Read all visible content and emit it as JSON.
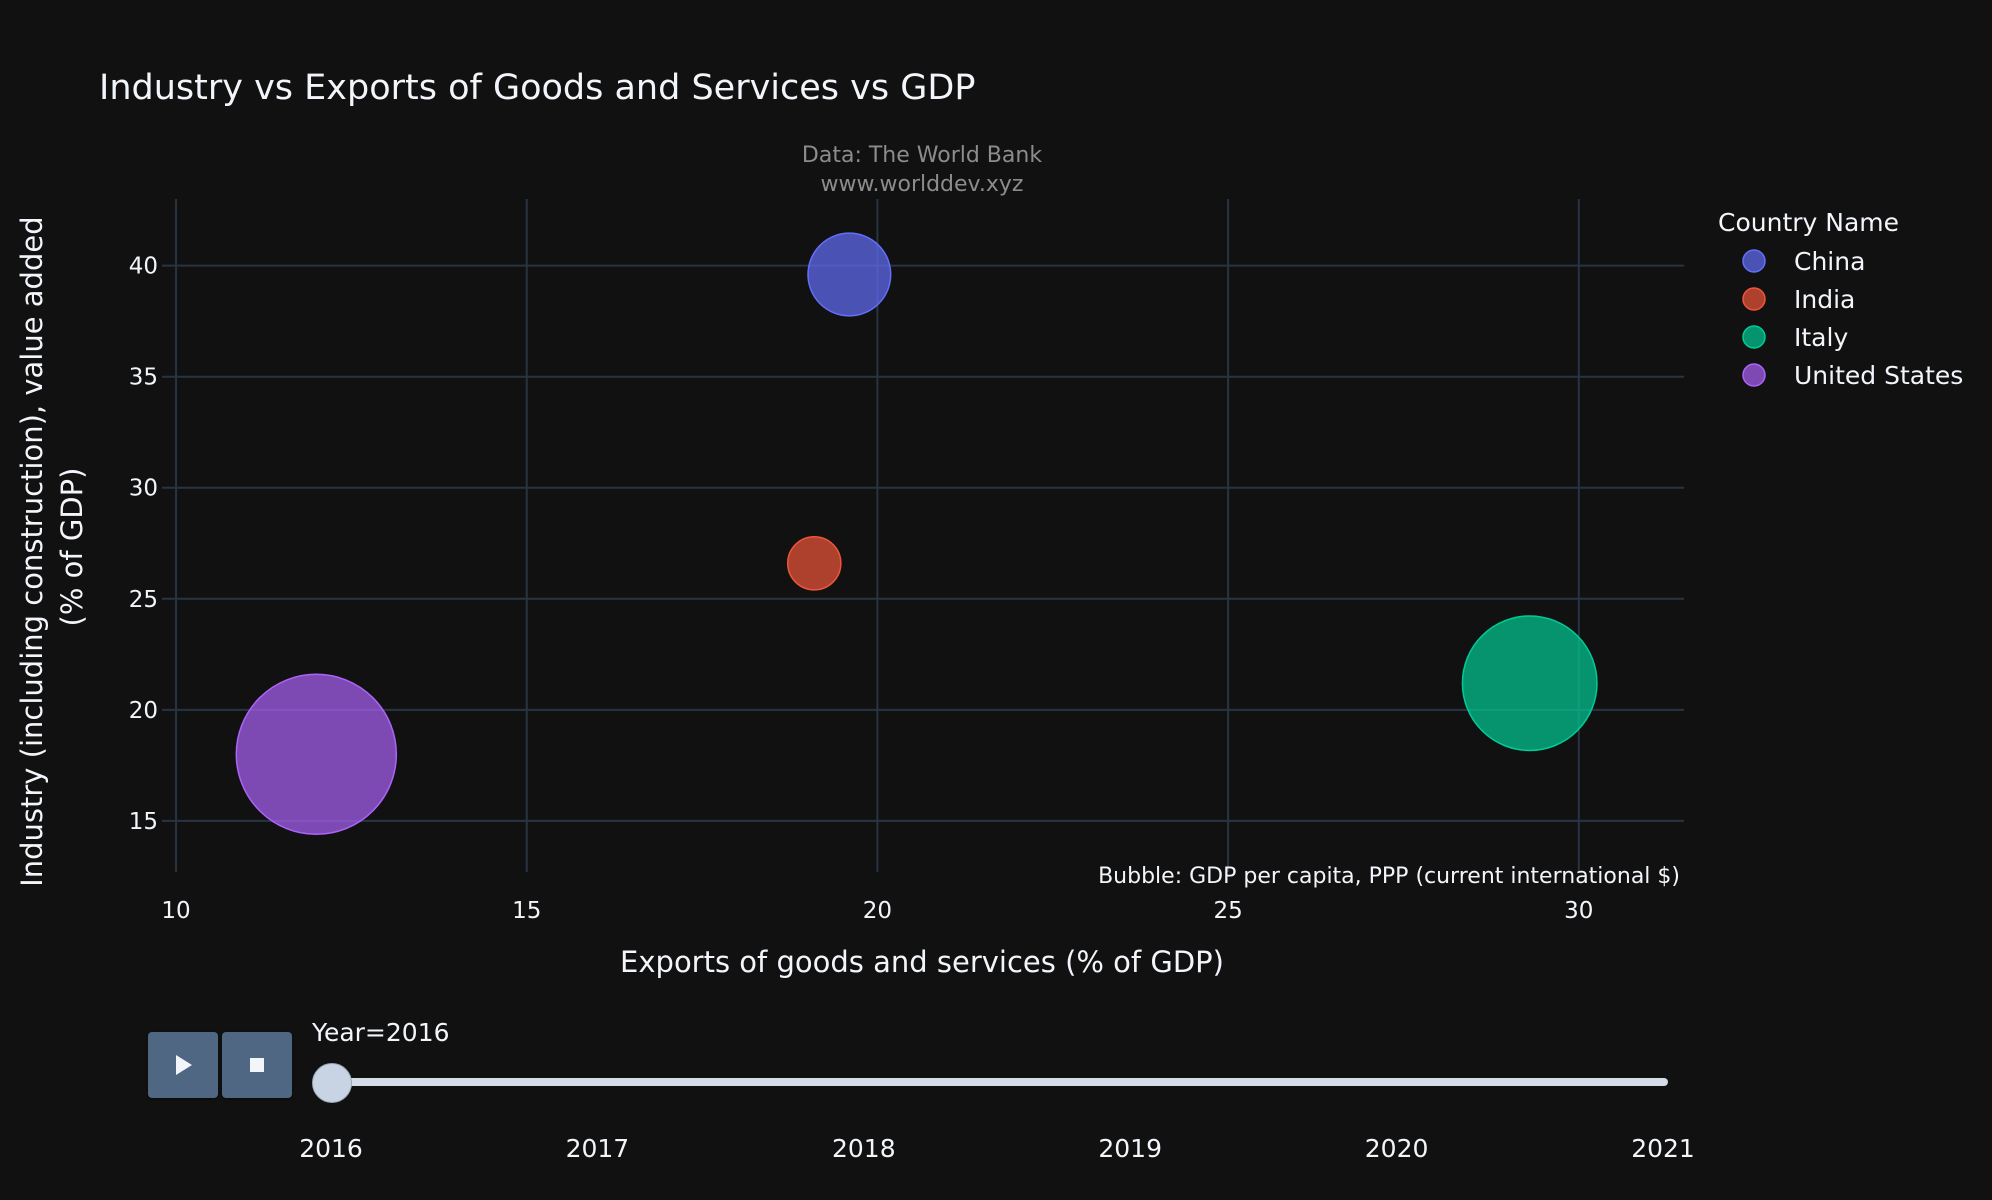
{
  "title": "Industry vs Exports of Goods and Services vs GDP",
  "source_line1": "Data: The World Bank",
  "source_line2": "www.worlddev.xyz",
  "chart_data": {
    "type": "scatter",
    "xlabel": "Exports of goods and services (% of GDP)",
    "ylabel_line1": "Industry (including construction), value added",
    "ylabel_line2": "(% of GDP)",
    "xlim": [
      9.8,
      31.5
    ],
    "ylim": [
      12.7,
      43
    ],
    "xticks": [
      10,
      15,
      20,
      25,
      30
    ],
    "yticks": [
      15,
      20,
      25,
      30,
      35,
      40
    ],
    "legend_title": "Country Name",
    "legend_position": "right",
    "grid": true,
    "annotation": "Bubble: GDP per capita, PPP (current international $)",
    "series": [
      {
        "name": "China",
        "color": "#636efa",
        "x": 19.6,
        "y": 39.6,
        "size": 15500
      },
      {
        "name": "India",
        "color": "#ef553b",
        "x": 19.1,
        "y": 26.6,
        "size": 6400
      },
      {
        "name": "Italy",
        "color": "#00cc96",
        "x": 29.3,
        "y": 21.2,
        "size": 41000
      },
      {
        "name": "United States",
        "color": "#ab63fa",
        "x": 12.0,
        "y": 18.0,
        "size": 58000
      }
    ]
  },
  "controls": {
    "play_icon": "play-icon",
    "stop_icon": "stop-icon",
    "slider_label": "Year=2016",
    "current_year": "2016",
    "years": [
      "2016",
      "2017",
      "2018",
      "2019",
      "2020",
      "2021"
    ]
  }
}
